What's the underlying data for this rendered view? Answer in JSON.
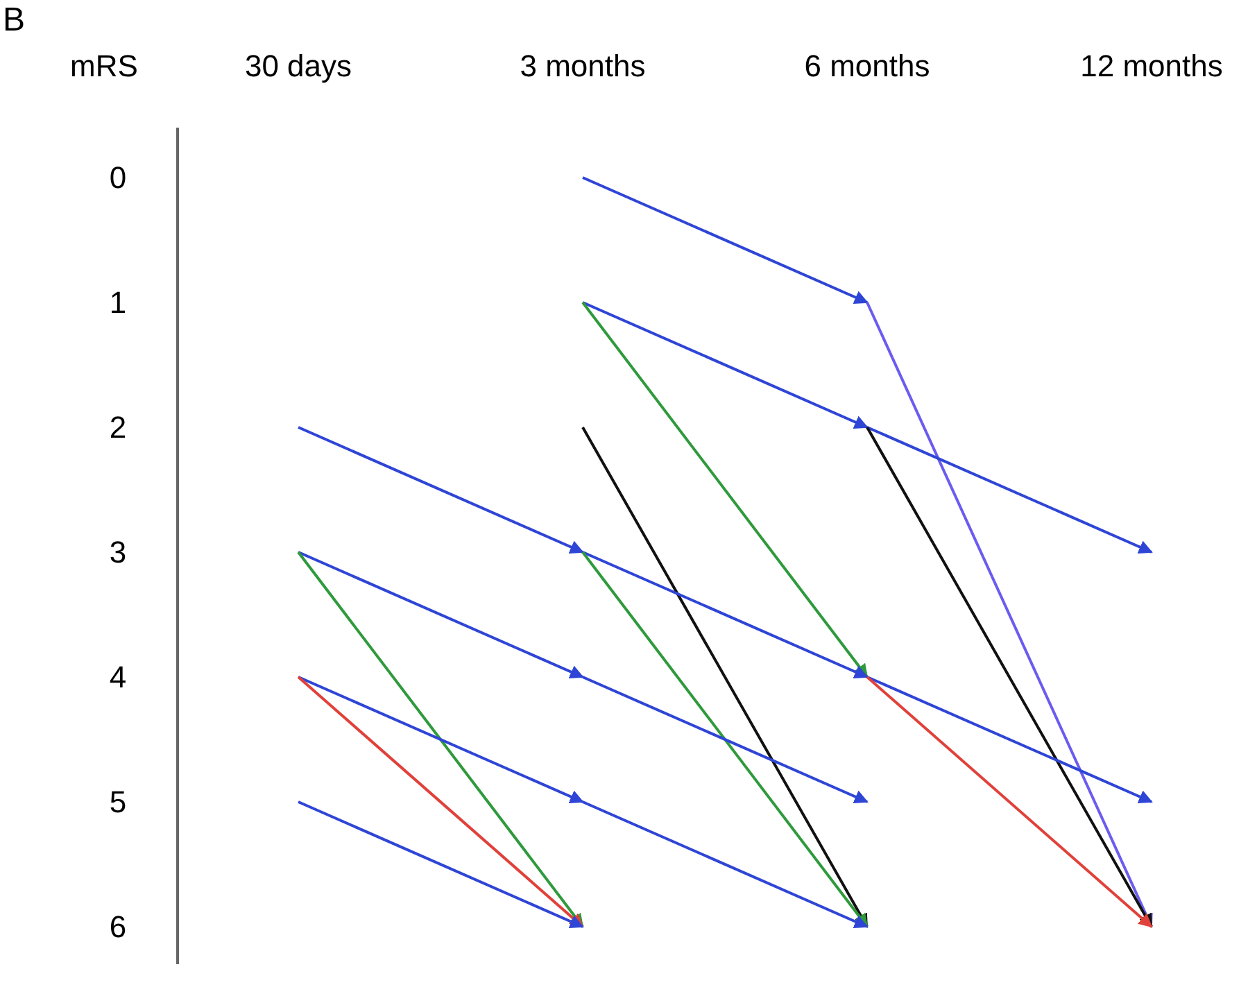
{
  "chart_data": {
    "type": "line",
    "title": "B",
    "ylabel": "mRS",
    "categories": [
      "30 days",
      "3 months",
      "6 months",
      "12 months"
    ],
    "ylim": [
      6.3,
      -0.4
    ],
    "yticks": [
      0,
      1,
      2,
      3,
      4,
      5,
      6
    ],
    "grid": false,
    "line_style": "solid",
    "series": [
      {
        "color": "#2f45d6",
        "values": [
          2,
          3,
          null,
          null
        ]
      },
      {
        "color": "#2f45d6",
        "values": [
          3,
          4,
          null,
          null
        ]
      },
      {
        "color": "#2e9a3c",
        "values": [
          3,
          6,
          null,
          null
        ]
      },
      {
        "color": "#2f45d6",
        "values": [
          4,
          5,
          null,
          null
        ]
      },
      {
        "color": "#e0413a",
        "values": [
          4,
          6,
          null,
          null
        ]
      },
      {
        "color": "#2f45d6",
        "values": [
          5,
          6,
          null,
          null
        ]
      },
      {
        "color": "#2f45d6",
        "values": [
          null,
          0,
          1,
          null
        ]
      },
      {
        "color": "#2f45d6",
        "values": [
          null,
          1,
          2,
          null
        ]
      },
      {
        "color": "#2e9a3c",
        "values": [
          null,
          1,
          4,
          null
        ]
      },
      {
        "color": "#111111",
        "values": [
          null,
          2,
          6,
          null
        ]
      },
      {
        "color": "#2f45d6",
        "values": [
          null,
          3,
          4,
          null
        ]
      },
      {
        "color": "#2e9a3c",
        "values": [
          null,
          3,
          6,
          null
        ]
      },
      {
        "color": "#2f45d6",
        "values": [
          null,
          4,
          5,
          null
        ]
      },
      {
        "color": "#2f45d6",
        "values": [
          null,
          5,
          6,
          null
        ]
      },
      {
        "color": "#6b5cf0",
        "values": [
          null,
          null,
          1,
          6
        ]
      },
      {
        "color": "#2f45d6",
        "values": [
          null,
          null,
          2,
          3
        ]
      },
      {
        "color": "#111111",
        "values": [
          null,
          null,
          2,
          6
        ]
      },
      {
        "color": "#2f45d6",
        "values": [
          null,
          null,
          4,
          5
        ]
      },
      {
        "color": "#e0413a",
        "values": [
          null,
          null,
          4,
          6
        ]
      }
    ]
  }
}
